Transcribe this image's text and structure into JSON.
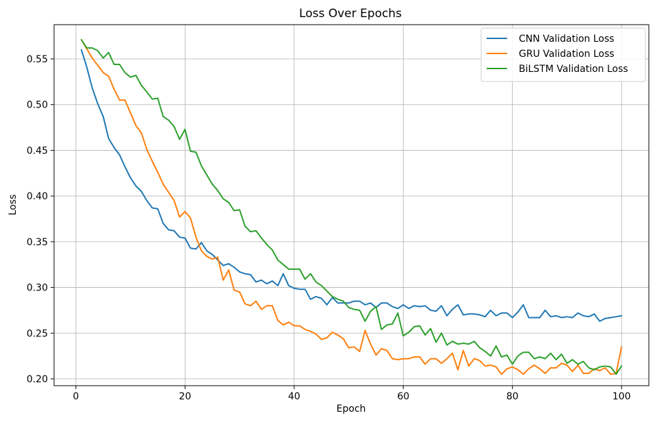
{
  "chart_data": {
    "type": "line",
    "title": "Loss Over Epochs",
    "xlabel": "Epoch",
    "ylabel": "Loss",
    "xlim": [
      -4,
      105
    ],
    "ylim": [
      0.1925,
      0.5875
    ],
    "xticks": [
      0,
      20,
      40,
      60,
      80,
      100
    ],
    "yticks": [
      0.2,
      0.25,
      0.3,
      0.35,
      0.4,
      0.45,
      0.5,
      0.55
    ],
    "xtick_labels": [
      "0",
      "20",
      "40",
      "60",
      "80",
      "100"
    ],
    "ytick_labels": [
      "0.20",
      "0.25",
      "0.30",
      "0.35",
      "0.40",
      "0.45",
      "0.50",
      "0.55"
    ],
    "grid": true,
    "legend_position": "top-right",
    "x": [
      1,
      2,
      3,
      4,
      5,
      6,
      7,
      8,
      9,
      10,
      11,
      12,
      13,
      14,
      15,
      16,
      17,
      18,
      19,
      20,
      21,
      22,
      23,
      24,
      25,
      26,
      27,
      28,
      29,
      30,
      31,
      32,
      33,
      34,
      35,
      36,
      37,
      38,
      39,
      40,
      41,
      42,
      43,
      44,
      45,
      46,
      47,
      48,
      49,
      50,
      51,
      52,
      53,
      54,
      55,
      56,
      57,
      58,
      59,
      60,
      61,
      62,
      63,
      64,
      65,
      66,
      67,
      68,
      69,
      70,
      71,
      72,
      73,
      74,
      75,
      76,
      77,
      78,
      79,
      80,
      81,
      82,
      83,
      84,
      85,
      86,
      87,
      88,
      89,
      90,
      91,
      92,
      93,
      94,
      95,
      96,
      97,
      98,
      99,
      100
    ],
    "series": [
      {
        "name": "CNN Validation Loss",
        "color": "#1f77b4",
        "values": [
          0.56,
          0.541,
          0.518,
          0.501,
          0.487,
          0.463,
          0.453,
          0.445,
          0.432,
          0.42,
          0.411,
          0.405,
          0.395,
          0.387,
          0.386,
          0.37,
          0.363,
          0.362,
          0.355,
          0.354,
          0.343,
          0.342,
          0.349,
          0.34,
          0.336,
          0.33,
          0.324,
          0.326,
          0.322,
          0.317,
          0.315,
          0.314,
          0.306,
          0.308,
          0.304,
          0.307,
          0.302,
          0.315,
          0.302,
          0.299,
          0.298,
          0.298,
          0.287,
          0.29,
          0.288,
          0.281,
          0.289,
          0.283,
          0.283,
          0.283,
          0.285,
          0.285,
          0.281,
          0.283,
          0.278,
          0.283,
          0.283,
          0.279,
          0.277,
          0.281,
          0.277,
          0.28,
          0.279,
          0.28,
          0.275,
          0.274,
          0.28,
          0.269,
          0.276,
          0.281,
          0.27,
          0.271,
          0.271,
          0.27,
          0.268,
          0.275,
          0.269,
          0.272,
          0.272,
          0.267,
          0.273,
          0.281,
          0.267,
          0.267,
          0.267,
          0.275,
          0.268,
          0.269,
          0.267,
          0.268,
          0.267,
          0.272,
          0.269,
          0.268,
          0.271,
          0.263,
          0.266,
          0.267,
          0.268,
          0.269
        ]
      },
      {
        "name": "GRU Validation Loss",
        "color": "#ff7f0e",
        "values": [
          0.571,
          0.561,
          0.551,
          0.543,
          0.535,
          0.531,
          0.517,
          0.505,
          0.505,
          0.491,
          0.477,
          0.469,
          0.451,
          0.438,
          0.426,
          0.413,
          0.404,
          0.395,
          0.377,
          0.383,
          0.376,
          0.355,
          0.34,
          0.334,
          0.331,
          0.333,
          0.308,
          0.319,
          0.297,
          0.295,
          0.282,
          0.28,
          0.285,
          0.276,
          0.28,
          0.28,
          0.264,
          0.259,
          0.262,
          0.258,
          0.258,
          0.254,
          0.252,
          0.249,
          0.243,
          0.245,
          0.251,
          0.248,
          0.244,
          0.234,
          0.235,
          0.23,
          0.253,
          0.238,
          0.226,
          0.233,
          0.231,
          0.222,
          0.221,
          0.222,
          0.222,
          0.224,
          0.224,
          0.216,
          0.222,
          0.222,
          0.217,
          0.222,
          0.228,
          0.21,
          0.231,
          0.214,
          0.222,
          0.22,
          0.214,
          0.215,
          0.213,
          0.205,
          0.211,
          0.213,
          0.21,
          0.205,
          0.211,
          0.215,
          0.211,
          0.206,
          0.212,
          0.212,
          0.217,
          0.215,
          0.208,
          0.215,
          0.206,
          0.206,
          0.211,
          0.209,
          0.212,
          0.205,
          0.206,
          0.235
        ]
      },
      {
        "name": "BiLSTM Validation Loss",
        "color": "#2ca02c",
        "values": [
          0.571,
          0.562,
          0.562,
          0.559,
          0.551,
          0.557,
          0.544,
          0.544,
          0.535,
          0.53,
          0.532,
          0.521,
          0.514,
          0.506,
          0.507,
          0.487,
          0.483,
          0.476,
          0.462,
          0.473,
          0.449,
          0.448,
          0.433,
          0.423,
          0.413,
          0.406,
          0.397,
          0.393,
          0.384,
          0.385,
          0.367,
          0.361,
          0.362,
          0.354,
          0.347,
          0.341,
          0.33,
          0.325,
          0.32,
          0.32,
          0.32,
          0.309,
          0.315,
          0.306,
          0.302,
          0.296,
          0.29,
          0.287,
          0.285,
          0.278,
          0.276,
          0.275,
          0.263,
          0.274,
          0.279,
          0.254,
          0.259,
          0.26,
          0.272,
          0.247,
          0.251,
          0.257,
          0.258,
          0.248,
          0.255,
          0.24,
          0.25,
          0.237,
          0.241,
          0.238,
          0.239,
          0.238,
          0.241,
          0.234,
          0.23,
          0.225,
          0.236,
          0.224,
          0.226,
          0.216,
          0.225,
          0.229,
          0.229,
          0.222,
          0.224,
          0.222,
          0.228,
          0.221,
          0.227,
          0.217,
          0.221,
          0.216,
          0.219,
          0.212,
          0.21,
          0.213,
          0.214,
          0.213,
          0.205,
          0.214
        ]
      }
    ]
  }
}
